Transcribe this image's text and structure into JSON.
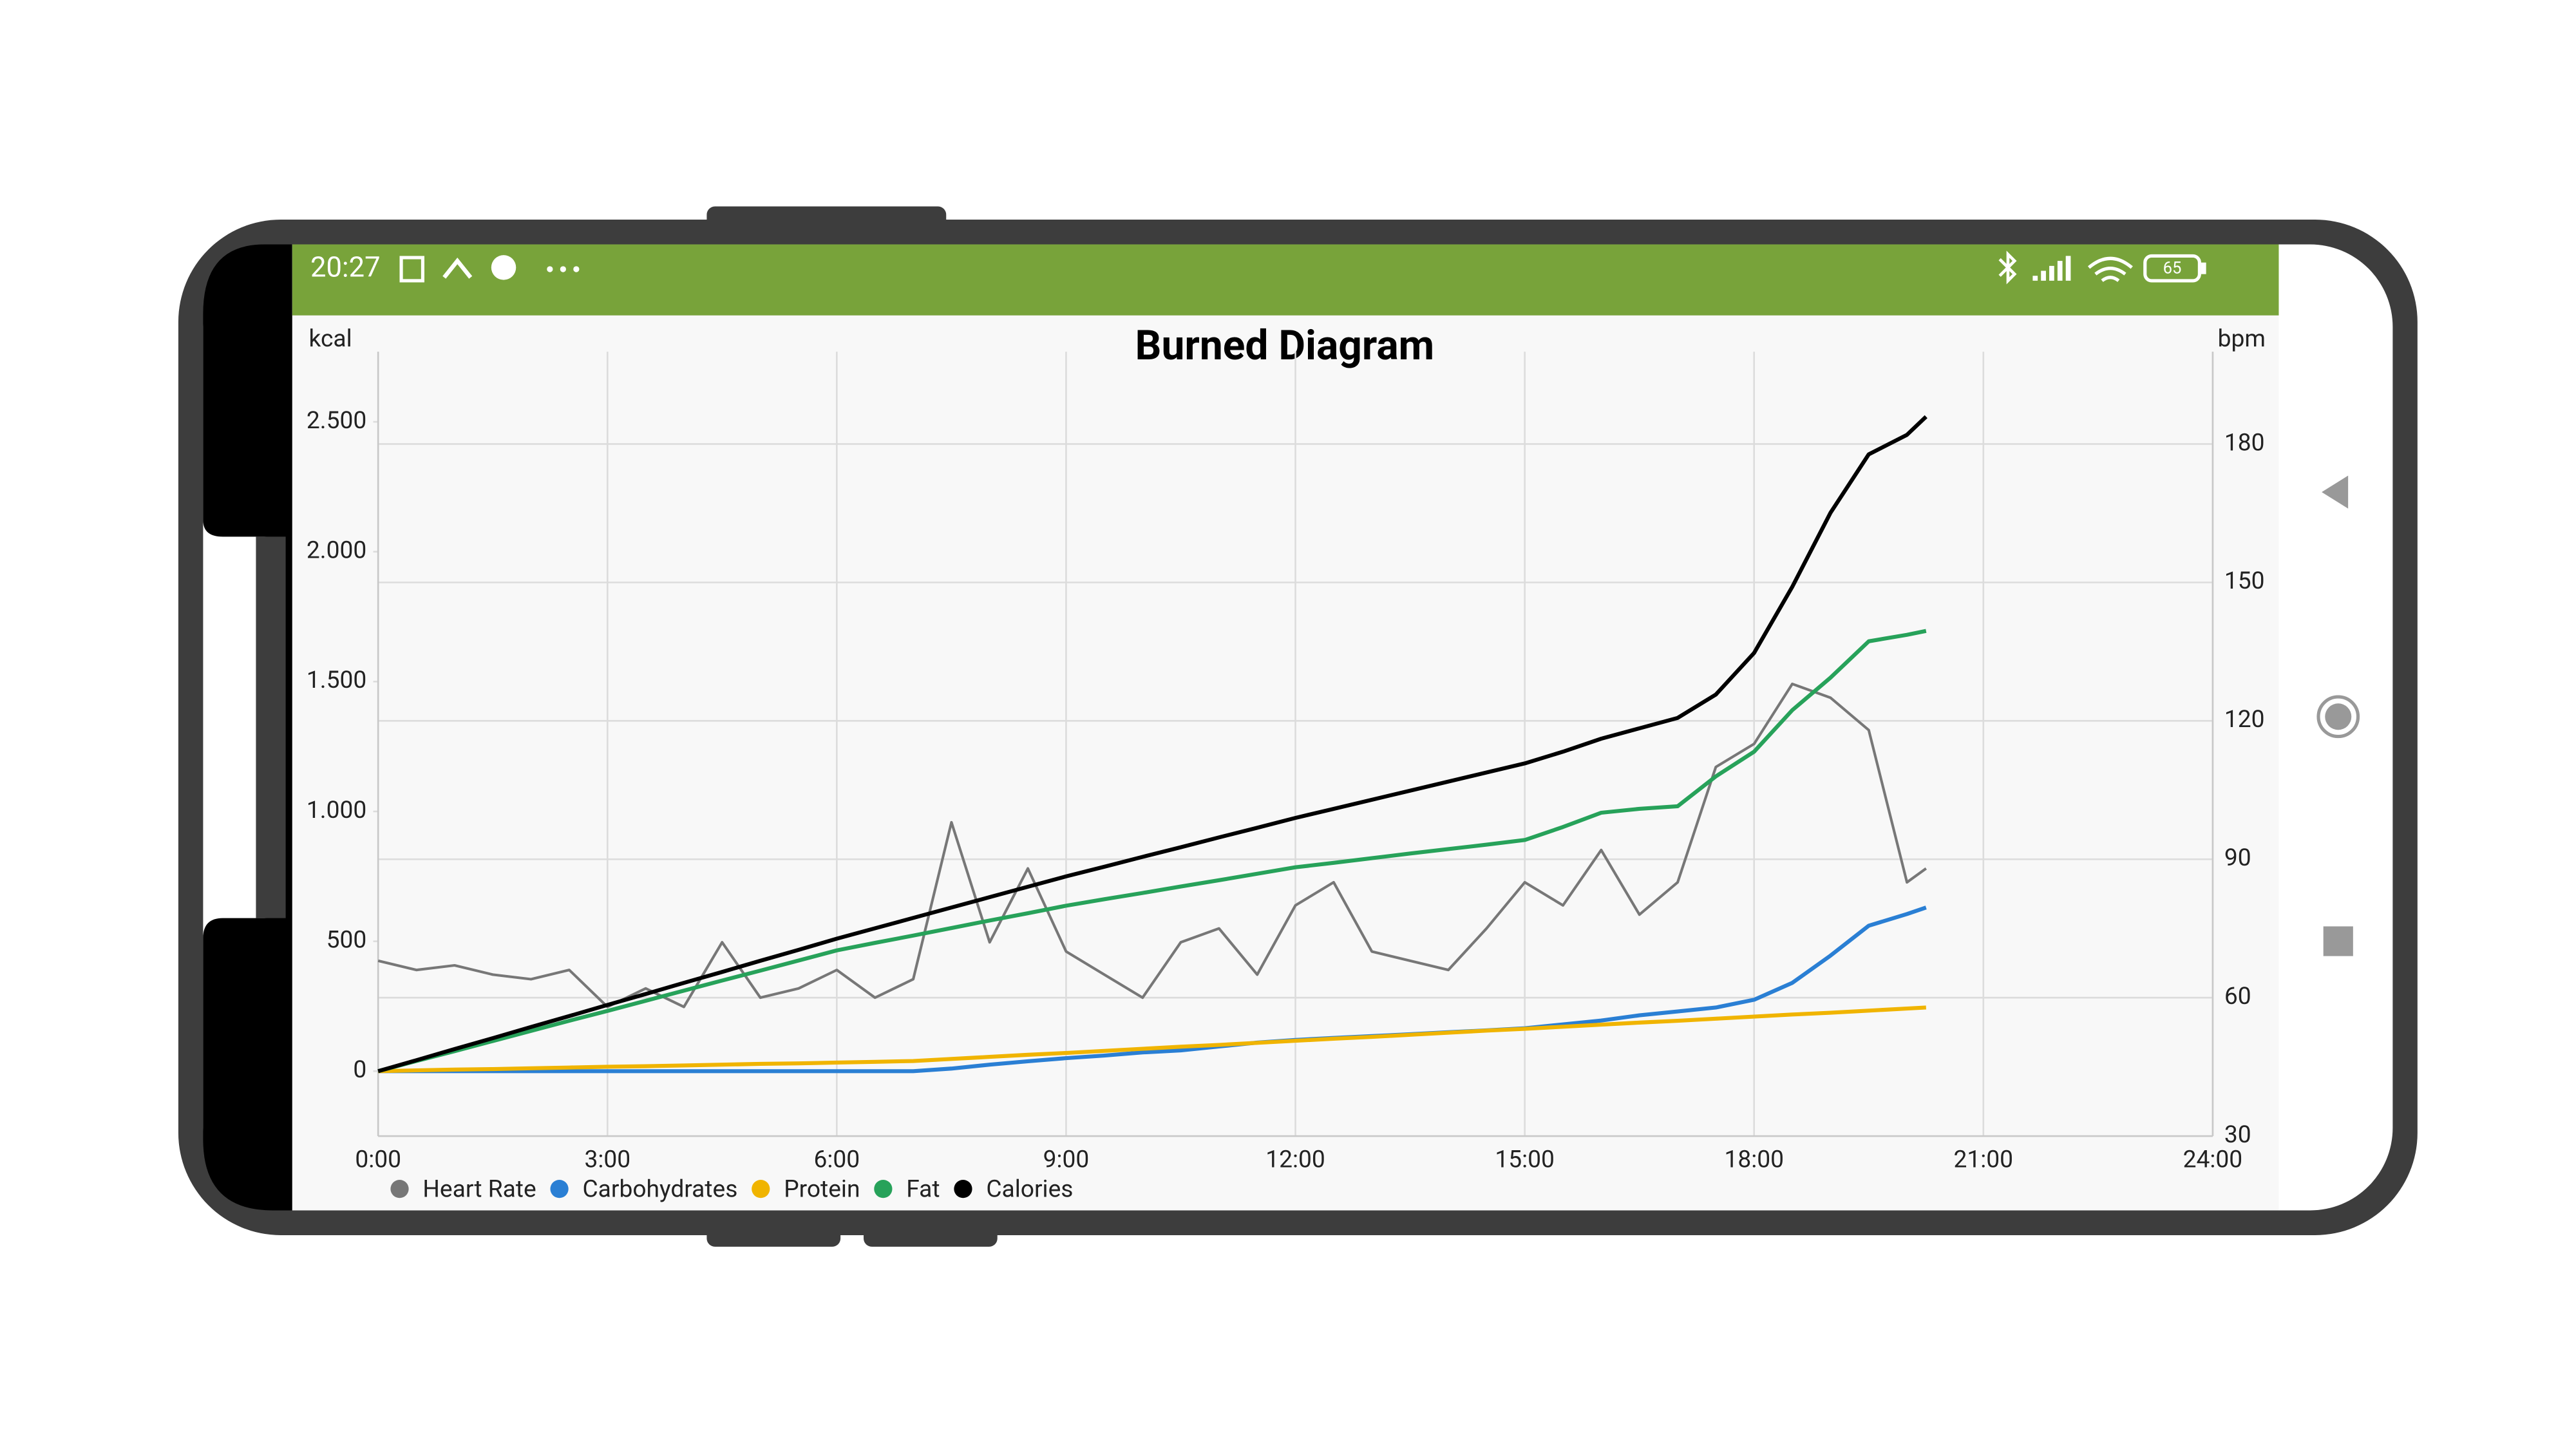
{
  "status_bar": {
    "time": "20:27",
    "battery": "65"
  },
  "chart_data": {
    "type": "line",
    "title": "Burned Diagram",
    "y_label": "kcal",
    "y2_label": "bpm",
    "x": [
      0,
      0.5,
      1,
      1.5,
      2,
      2.5,
      3,
      3.5,
      4,
      4.5,
      5,
      5.5,
      6,
      6.5,
      7,
      7.5,
      8,
      8.5,
      9,
      9.5,
      10,
      10.5,
      11,
      11.5,
      12,
      12.5,
      13,
      13.5,
      14,
      14.5,
      15,
      15.5,
      16,
      16.5,
      17,
      17.5,
      18,
      18.5,
      19,
      19.5,
      20,
      20.25
    ],
    "xlim": [
      0,
      24
    ],
    "xticks": [
      {
        "value": 0,
        "label": "0:00"
      },
      {
        "value": 3,
        "label": "3:00"
      },
      {
        "value": 6,
        "label": "6:00"
      },
      {
        "value": 9,
        "label": "9:00"
      },
      {
        "value": 12,
        "label": "12:00"
      },
      {
        "value": 15,
        "label": "15:00"
      },
      {
        "value": 18,
        "label": "18:00"
      },
      {
        "value": 21,
        "label": "21:00"
      },
      {
        "value": 24,
        "label": "24:00"
      }
    ],
    "ylim": [
      -250,
      2770
    ],
    "yticks": [
      0,
      500,
      {
        "value": 1000,
        "label": "1.000"
      },
      {
        "value": 1500,
        "label": "1.500"
      },
      {
        "value": 2000,
        "label": "2.000"
      },
      {
        "value": 2500,
        "label": "2.500"
      }
    ],
    "y2lim": [
      30,
      200
    ],
    "y2ticks": [
      30,
      60,
      90,
      120,
      150,
      180
    ],
    "grid": true,
    "legend": "bottom-left",
    "series": [
      {
        "name": "Heart Rate",
        "color": "#777777",
        "axis": "y2",
        "values": [
          68,
          66,
          67,
          65,
          64,
          66,
          58,
          62,
          58,
          72,
          60,
          62,
          66,
          60,
          64,
          98,
          72,
          88,
          70,
          65,
          60,
          72,
          75,
          65,
          80,
          85,
          70,
          68,
          66,
          75,
          85,
          80,
          92,
          78,
          85,
          110,
          115,
          128,
          125,
          118,
          85,
          88
        ]
      },
      {
        "name": "Carbohydrates",
        "color": "#2a7fd4",
        "values": [
          0,
          0,
          0,
          0,
          0,
          0,
          0,
          0,
          0,
          0,
          0,
          0,
          0,
          0,
          0,
          10,
          25,
          38,
          50,
          60,
          72,
          80,
          95,
          110,
          120,
          128,
          135,
          142,
          150,
          157,
          165,
          180,
          195,
          215,
          230,
          245,
          275,
          340,
          445,
          560,
          605,
          630
        ]
      },
      {
        "name": "Protein",
        "color": "#f0b400",
        "values": [
          0,
          3,
          6,
          8,
          11,
          14,
          17,
          19,
          22,
          25,
          28,
          30,
          33,
          36,
          39,
          47,
          55,
          63,
          70,
          78,
          86,
          94,
          101,
          109,
          117,
          125,
          132,
          140,
          148,
          156,
          163,
          171,
          179,
          187,
          194,
          202,
          210,
          218,
          225,
          233,
          241,
          245
        ]
      },
      {
        "name": "Fat",
        "color": "#27a25a",
        "values": [
          0,
          39,
          77,
          116,
          155,
          194,
          232,
          271,
          310,
          349,
          387,
          426,
          465,
          494,
          522,
          551,
          580,
          608,
          637,
          662,
          686,
          711,
          735,
          760,
          785,
          802,
          820,
          838,
          855,
          872,
          890,
          940,
          995,
          1010,
          1020,
          1135,
          1230,
          1390,
          1515,
          1655,
          1680,
          1695
        ]
      },
      {
        "name": "Calories",
        "color": "#000000",
        "values": [
          0,
          42,
          85,
          127,
          170,
          212,
          255,
          297,
          340,
          382,
          425,
          467,
          510,
          550,
          590,
          630,
          670,
          710,
          750,
          787,
          825,
          862,
          900,
          937,
          975,
          1010,
          1045,
          1080,
          1115,
          1150,
          1185,
          1230,
          1280,
          1320,
          1360,
          1450,
          1610,
          1865,
          2150,
          2375,
          2450,
          2520
        ]
      }
    ]
  }
}
